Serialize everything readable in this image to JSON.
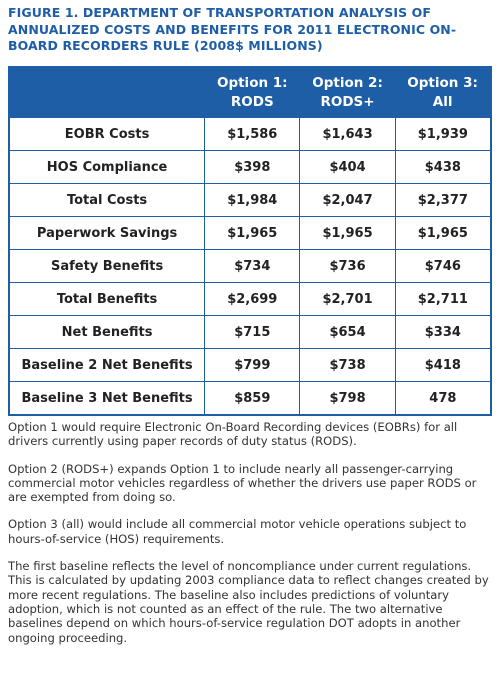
{
  "header": {
    "title": "FIGURE 1. DEPARTMENT OF TRANSPORTATION ANALYSIS OF ANNUALIZED COSTS AND BENEFITS FOR 2011 ELECTRONIC ON-BOARD RECORDERS RULE (2008$ MILLIONS)"
  },
  "table": {
    "columns": [
      [
        "Option 1:",
        "RODS"
      ],
      [
        "Option 2:",
        "RODS+"
      ],
      [
        "Option 3:",
        "All"
      ]
    ],
    "rows": [
      [
        "EOBR Costs",
        "$1,586",
        "$1,643",
        "$1,939"
      ],
      [
        "HOS Compliance",
        "$398",
        "$404",
        "$438"
      ],
      [
        "Total Costs",
        "$1,984",
        "$2,047",
        "$2,377"
      ],
      [
        "Paperwork Savings",
        "$1,965",
        "$1,965",
        "$1,965"
      ],
      [
        "Safety Benefits",
        "$734",
        "$736",
        "$746"
      ],
      [
        "Total Benefits",
        "$2,699",
        "$2,701",
        "$2,711"
      ],
      [
        "Net Benefits",
        "$715",
        "$654",
        "$334"
      ],
      [
        "Baseline 2 Net Benefits",
        "$799",
        "$738",
        "$418"
      ],
      [
        "Baseline 3 Net Benefits",
        "$859",
        "$798",
        "478"
      ]
    ]
  },
  "notes": [
    "Option 1 would require Electronic On-Board Recording devices (EOBRs) for all drivers currently using paper records of duty status (RODS).",
    "Option 2 (RODS+) expands Option 1 to include nearly all passenger-carrying commercial motor vehicles regardless of whether the drivers use paper RODS or are exempted from doing so.",
    "Option 3 (all) would include all commercial motor vehicle operations subject to hours-of-service (HOS) requirements.",
    "The first baseline reflects the level of noncompliance under current regulations. This is calculated by updating 2003 compliance data to reflect changes created by more recent regulations. The baseline also includes predictions of voluntary adoption, which is not counted as an effect of the rule. The two alternative baselines depend on which hours-of-service regulation DOT adopts in another ongoing proceeding."
  ]
}
